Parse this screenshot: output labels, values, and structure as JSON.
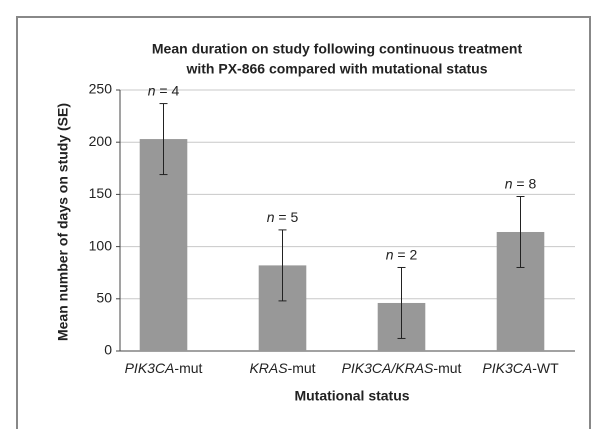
{
  "chart_data": {
    "type": "bar",
    "title": [
      "Mean duration on study following continuous treatment",
      "with PX-866  compared with mutational status"
    ],
    "x_label": "Mutational status",
    "y_label": "Mean number of days on study (SE)",
    "categories": [
      "PIK3CA-mut",
      "KRAS-mut",
      "PIK3CA/KRAS-mut",
      "PIK3CA-WT"
    ],
    "values": [
      203,
      82,
      46,
      114
    ],
    "errors": [
      34,
      34,
      34,
      34
    ],
    "annotations": [
      "n = 4",
      "n = 5",
      "n = 2",
      "n = 8"
    ],
    "color": "#989898",
    "ylim": [
      0,
      250
    ],
    "yticks": [
      0,
      50,
      100,
      150,
      200,
      250
    ],
    "grid": true
  }
}
